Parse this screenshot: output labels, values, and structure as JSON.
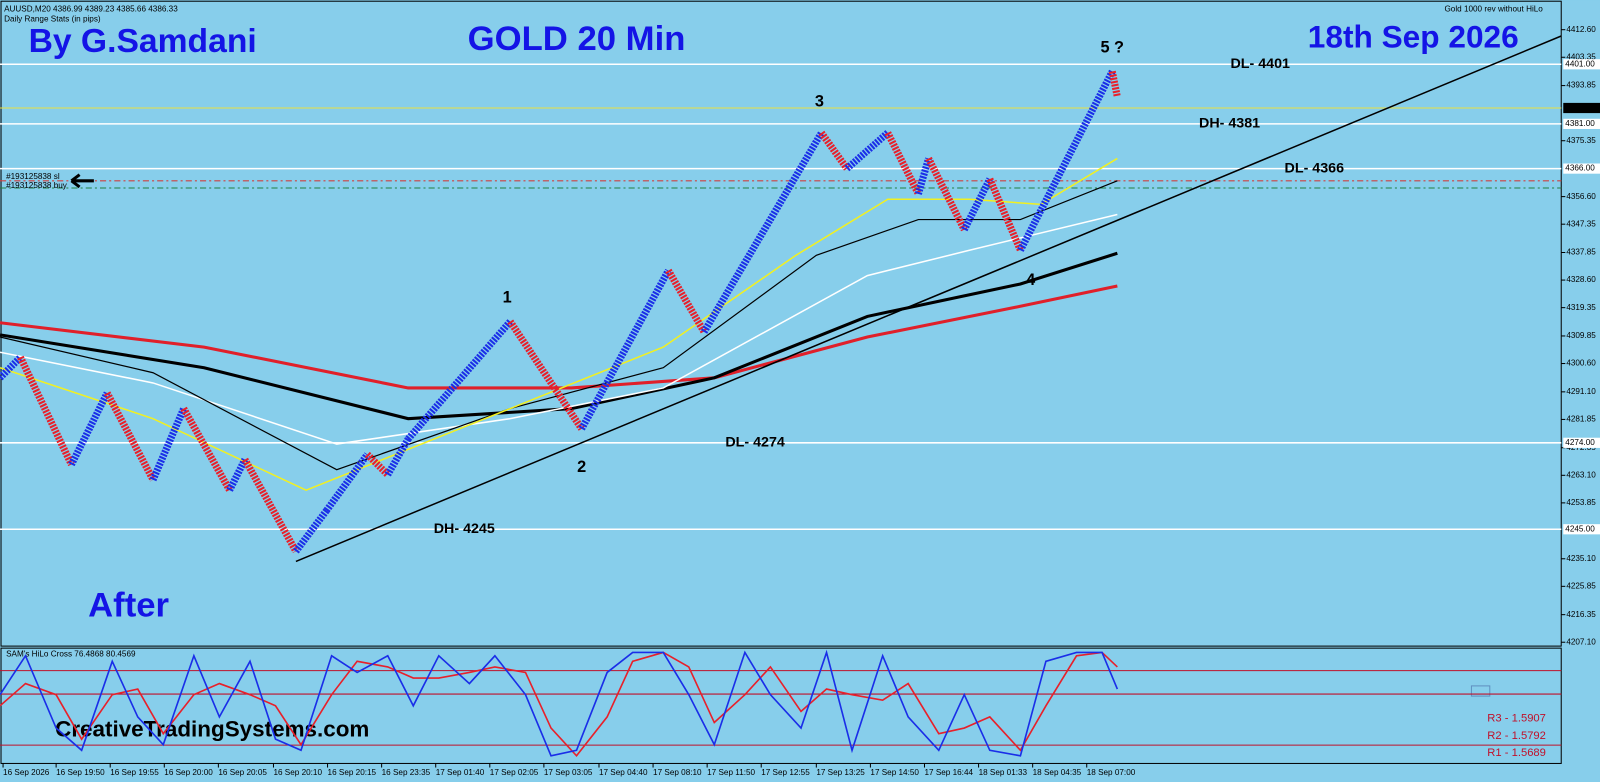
{
  "chart_data": {
    "type": "line",
    "header": "AUUSD,M20  4386.99 4389.23 4385.66 4386.33",
    "stats_title": "Daily Range Stats (in pips)",
    "indicator_name": "Gold 1000 rev without HiLo",
    "author": "By G.Samdani",
    "title": "GOLD 20 Min",
    "date_label": "18th Sep 2026",
    "caption": "After",
    "website": "CreativeTradingSystems.com",
    "xlim": [
      0,
      306
    ],
    "ylim": [
      4205.8,
      4422.5
    ],
    "yticks": [
      {
        "value": 4412.6,
        "label": "4412.60"
      },
      {
        "value": 4403.35,
        "label": "4403.35"
      },
      {
        "value": 4393.85,
        "label": "4393.85"
      },
      {
        "value": 4375.35,
        "label": "4375.35"
      },
      {
        "value": 4356.6,
        "label": "4356.60"
      },
      {
        "value": 4347.35,
        "label": "4347.35"
      },
      {
        "value": 4337.85,
        "label": "4337.85"
      },
      {
        "value": 4328.6,
        "label": "4328.60"
      },
      {
        "value": 4319.35,
        "label": "4319.35"
      },
      {
        "value": 4309.85,
        "label": "4309.85"
      },
      {
        "value": 4300.6,
        "label": "4300.60"
      },
      {
        "value": 4291.1,
        "label": "4291.10"
      },
      {
        "value": 4281.85,
        "label": "4281.85"
      },
      {
        "value": 4272.35,
        "label": "4272.35"
      },
      {
        "value": 4263.1,
        "label": "4263.10"
      },
      {
        "value": 4253.85,
        "label": "4253.85"
      },
      {
        "value": 4235.1,
        "label": "4235.10"
      },
      {
        "value": 4225.85,
        "label": "4225.85"
      },
      {
        "value": 4216.35,
        "label": "4216.35"
      },
      {
        "value": 4207.1,
        "label": "4207.10"
      }
    ],
    "xticks": [
      {
        "value": 0.6,
        "label": "16 Sep 2026"
      },
      {
        "value": 11,
        "label": "16 Sep 19:50"
      },
      {
        "value": 21.6,
        "label": "16 Sep 19:55"
      },
      {
        "value": 32.2,
        "label": "16 Sep 20:00"
      },
      {
        "value": 42.8,
        "label": "16 Sep 20:05"
      },
      {
        "value": 53.6,
        "label": "16 Sep 20:10"
      },
      {
        "value": 64.2,
        "label": "16 Sep 20:15"
      },
      {
        "value": 74.8,
        "label": "16 Sep 23:35"
      },
      {
        "value": 85.4,
        "label": "17 Sep 01:40"
      },
      {
        "value": 96,
        "label": "17 Sep 02:05"
      },
      {
        "value": 106.6,
        "label": "17 Sep 03:05"
      },
      {
        "value": 117.4,
        "label": "17 Sep 04:40"
      },
      {
        "value": 128,
        "label": "17 Sep 08:10"
      },
      {
        "value": 138.6,
        "label": "17 Sep 11:50"
      },
      {
        "value": 149.2,
        "label": "17 Sep 12:55"
      },
      {
        "value": 160,
        "label": "17 Sep 13:25"
      },
      {
        "value": 170.6,
        "label": "17 Sep 14:50"
      },
      {
        "value": 181.2,
        "label": "17 Sep 16:44"
      },
      {
        "value": 191.8,
        "label": "18 Sep 01:33"
      },
      {
        "value": 202.4,
        "label": "18 Sep 04:35"
      },
      {
        "value": 213,
        "label": "18 Sep 07:00"
      }
    ],
    "price": {
      "up_color": "#1a2ee8",
      "down_color": "#e8202a",
      "x": [
        0,
        4,
        14,
        21,
        30,
        36,
        45,
        48,
        58,
        64,
        72,
        76,
        80,
        100,
        114,
        131,
        138,
        161,
        166,
        174,
        180,
        182,
        189,
        194,
        200,
        218,
        219
      ],
      "values": [
        4295.8,
        4302.7,
        4266.7,
        4290.7,
        4261.6,
        4285.5,
        4258.1,
        4268.4,
        4237.6,
        4251.3,
        4270.1,
        4263.3,
        4275.3,
        4314.7,
        4278.7,
        4331.8,
        4311.2,
        4378.0,
        4366.0,
        4378.0,
        4357.5,
        4369.4,
        4345.5,
        4362.5,
        4338.6,
        4398.6,
        4390.0
      ]
    },
    "current_price": {
      "value": 4386.33,
      "color": "#e8e040"
    },
    "series": [
      {
        "color": "#e0202a",
        "width": 3,
        "x": [
          0,
          40,
          80,
          112,
          140,
          170,
          200,
          219
        ],
        "values": [
          4314.3,
          4306.1,
          4292.4,
          4292.4,
          4295.8,
          4309.5,
          4319.8,
          4326.6
        ]
      },
      {
        "color": "#000000",
        "width": 3,
        "x": [
          0,
          40,
          80,
          112,
          140,
          170,
          200,
          219
        ],
        "values": [
          4310.2,
          4299.2,
          4282.1,
          4285.5,
          4295.8,
          4316.4,
          4327.3,
          4337.6
        ]
      },
      {
        "color": "#ffffff",
        "width": 1.5,
        "x": [
          0,
          30,
          66,
          100,
          130,
          170,
          190,
          219
        ],
        "values": [
          4304.4,
          4294.1,
          4273.6,
          4282.1,
          4292.4,
          4330.1,
          4338.6,
          4350.6
        ]
      },
      {
        "color": "#000000",
        "width": 1.2,
        "x": [
          0,
          30,
          66,
          100,
          130,
          160,
          180,
          200,
          219
        ],
        "values": [
          4309.5,
          4297.5,
          4265.0,
          4285.5,
          4299.2,
          4336.9,
          4348.9,
          4348.9,
          4361.9
        ]
      },
      {
        "color": "#f2f020",
        "width": 1.5,
        "x": [
          0,
          30,
          60,
          100,
          130,
          156,
          174,
          190,
          204,
          219
        ],
        "values": [
          4299.2,
          4282.1,
          4258.1,
          4285.5,
          4306.1,
          4336.9,
          4355.7,
          4355.7,
          4354.0,
          4369.4
        ]
      }
    ],
    "trendline": {
      "color": "#000000",
      "x": [
        58,
        306
      ],
      "values": [
        4234.2,
        4410.5
      ]
    },
    "levels": [
      {
        "label": "DL- 4401",
        "value": 4401,
        "axis_label": "4401.00",
        "label_x": 247
      },
      {
        "label": "DH- 4381",
        "value": 4381,
        "axis_label": "4381.00",
        "label_x": 241
      },
      {
        "label": "DL- 4366",
        "value": 4366,
        "axis_label": "4366.00",
        "label_x": 257.6
      },
      {
        "label": "DL- 4274",
        "value": 4274,
        "axis_label": "4274.00",
        "label_x": 148
      },
      {
        "label": "DH- 4245",
        "value": 4245,
        "axis_label": "4245.00",
        "label_x": 91
      }
    ],
    "orders": [
      {
        "label": "#193125838 sl",
        "value": 4361.9,
        "color": "#d04040"
      },
      {
        "label": "#193125838 buy",
        "value": 4359.5,
        "color": "#208040"
      }
    ],
    "annotations": [
      {
        "text": "1",
        "x": 99.4,
        "y": 4322.5
      },
      {
        "text": "2",
        "x": 114,
        "y": 4265.7
      },
      {
        "text": "3",
        "x": 160.6,
        "y": 4388.3
      },
      {
        "text": "4",
        "x": 202,
        "y": 4328.4
      },
      {
        "text": "5 ?",
        "x": 218,
        "y": 4406.4
      }
    ],
    "oscillator": {
      "name": "SAM's HiLo Cross 76.4868 80.4569",
      "ylim": [
        0,
        100
      ],
      "x": [
        0,
        5,
        11,
        16,
        22,
        27,
        32,
        38,
        43,
        49,
        54,
        59,
        65,
        70,
        76,
        81,
        86,
        92,
        97,
        103,
        108,
        113,
        119,
        124,
        130,
        135,
        140,
        146,
        151,
        157,
        162,
        167,
        173,
        178,
        184,
        189,
        194,
        200,
        205,
        211,
        216,
        219
      ],
      "series": [
        {
          "color": "#1a2ee8",
          "values": [
            60,
            95,
            30,
            10,
            90,
            40,
            15,
            95,
            40,
            90,
            20,
            10,
            95,
            80,
            95,
            50,
            95,
            70,
            95,
            60,
            5,
            10,
            80,
            98,
            98,
            60,
            15,
            98,
            60,
            30,
            98,
            10,
            95,
            40,
            10,
            60,
            10,
            5,
            90,
            98,
            98,
            65
          ]
        },
        {
          "color": "#e8202a",
          "values": [
            50,
            70,
            60,
            20,
            60,
            65,
            25,
            60,
            70,
            60,
            50,
            15,
            60,
            90,
            85,
            75,
            75,
            80,
            85,
            80,
            30,
            5,
            40,
            90,
            98,
            85,
            35,
            60,
            85,
            45,
            65,
            60,
            55,
            70,
            25,
            30,
            40,
            10,
            50,
            95,
            98,
            85
          ]
        }
      ],
      "pivots": [
        "R3 - 1.5907",
        "R2 - 1.5792",
        "R1 - 1.5689"
      ],
      "pivot_color": "#c0102a"
    }
  }
}
